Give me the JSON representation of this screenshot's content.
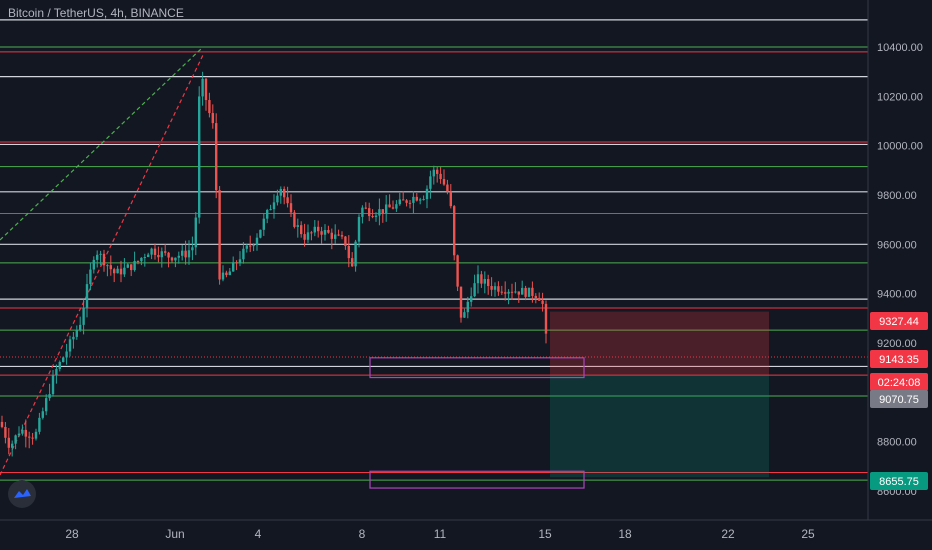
{
  "header": {
    "title": "Bitcoin / TetherUS, 4h, BINANCE"
  },
  "price_axis": {
    "ticks": [
      "10400.00",
      "10200.00",
      "10000.00",
      "9800.00",
      "9600.00",
      "9400.00",
      "9200.00",
      "8800.00",
      "8600.00"
    ],
    "tick_values": [
      10400,
      10200,
      10000,
      9800,
      9600,
      9400,
      9200,
      8800,
      8600
    ]
  },
  "time_axis": {
    "labels": [
      "28",
      "Jun",
      "4",
      "8",
      "11",
      "15",
      "18",
      "22",
      "25"
    ]
  },
  "price_labels": [
    {
      "text": "9327.44",
      "value": 9327.44,
      "color": "#f23645"
    },
    {
      "text": "9143.35",
      "value": 9143.35,
      "color": "#f23645"
    },
    {
      "text": "02:24:08",
      "value": 9105,
      "color": "#f23645"
    },
    {
      "text": "9070.75",
      "value": 9070.75,
      "color": "#787b86"
    },
    {
      "text": "8655.75",
      "value": 8655.75,
      "color": "#089981"
    }
  ],
  "levels": {
    "white": [
      10510,
      10280,
      10005,
      9813,
      9600,
      9378,
      9105
    ],
    "green": [
      10400,
      9915,
      9525,
      9252,
      8985,
      8644
    ],
    "red": [
      10380,
      10015,
      9725,
      9342,
      9070,
      8675
    ]
  },
  "position_tool": {
    "entry": 9070.75,
    "stop": 9327.44,
    "target": 8655.75
  },
  "zones": [
    {
      "top": 9140,
      "bottom": 9060
    },
    {
      "top": 8680,
      "bottom": 8612
    }
  ],
  "colors": {
    "background": "#131722",
    "up": "#26a69a",
    "down": "#ef5350",
    "grid_white": "#d1d4dc",
    "level_green": "#4caf50",
    "level_red": "#f23645",
    "zone": "#ab47bc",
    "axis_text": "#b2b5be",
    "trend_green": "#4caf50",
    "trend_red": "#f23645"
  },
  "icons": {
    "logo": "tradingview-logo-icon"
  }
}
